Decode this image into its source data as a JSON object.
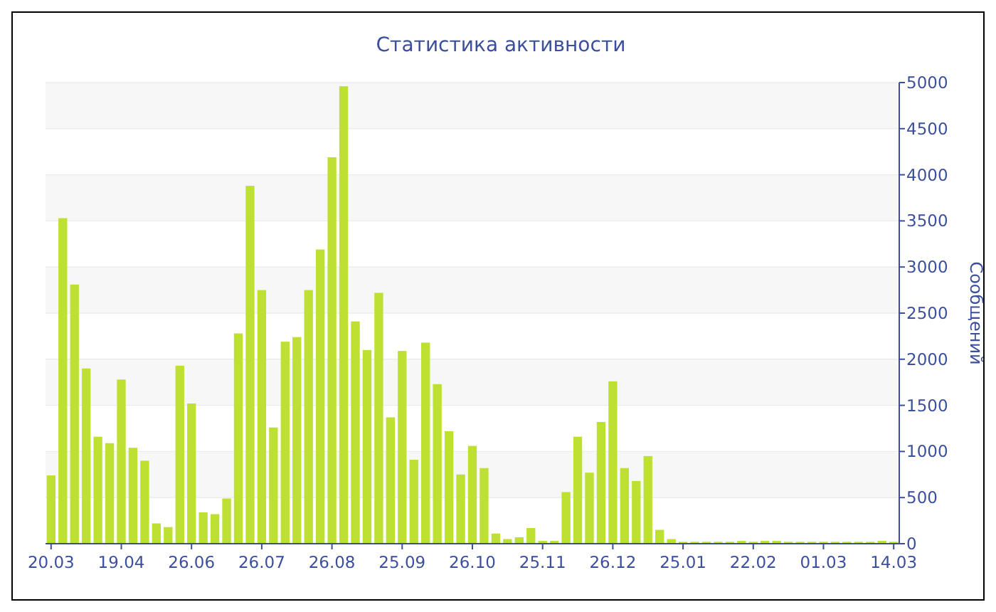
{
  "chart_data": {
    "type": "bar",
    "title": "Статистика активности",
    "ylabel": "Сообщений",
    "categories": [
      "20.03",
      null,
      null,
      null,
      null,
      null,
      "19.04",
      null,
      null,
      null,
      null,
      null,
      "26.06",
      null,
      null,
      null,
      null,
      null,
      "26.07",
      null,
      null,
      null,
      null,
      null,
      "26.08",
      null,
      null,
      null,
      null,
      null,
      "25.09",
      null,
      null,
      null,
      null,
      null,
      "26.10",
      null,
      null,
      null,
      null,
      null,
      "25.11",
      null,
      null,
      null,
      null,
      null,
      "26.12",
      null,
      null,
      null,
      null,
      null,
      "25.01",
      null,
      null,
      null,
      null,
      null,
      "22.02",
      null,
      null,
      null,
      null,
      null,
      "01.03",
      null,
      null,
      null,
      null,
      null,
      "14.03"
    ],
    "values": [
      740,
      3530,
      2810,
      1900,
      1160,
      1090,
      1780,
      1040,
      900,
      220,
      180,
      1930,
      1520,
      340,
      320,
      490,
      2280,
      3880,
      2750,
      1260,
      2190,
      2240,
      2750,
      3190,
      4190,
      4960,
      2410,
      2100,
      2720,
      1370,
      2090,
      910,
      2180,
      1730,
      1220,
      750,
      1060,
      820,
      110,
      50,
      70,
      170,
      30,
      30,
      560,
      1160,
      770,
      1320,
      1760,
      820,
      680,
      950,
      150,
      50,
      20,
      20,
      20,
      20,
      20,
      30,
      20,
      30,
      30,
      20,
      20,
      20,
      20,
      20,
      20,
      20,
      20,
      30,
      20
    ],
    "color": "#bde032",
    "ylim": [
      0,
      5000
    ],
    "yticks": [
      0,
      500,
      1000,
      1500,
      2000,
      2500,
      3000,
      3500,
      4000,
      4500,
      5000
    ],
    "grid": "y"
  }
}
